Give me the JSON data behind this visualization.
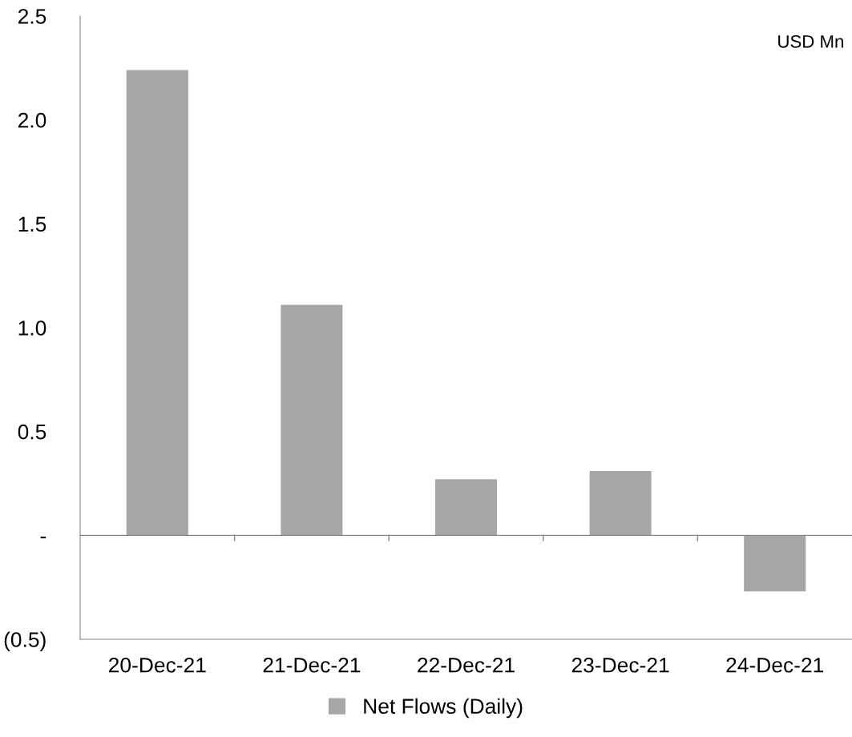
{
  "chart_data": {
    "type": "bar",
    "categories": [
      "20-Dec-21",
      "21-Dec-21",
      "22-Dec-21",
      "23-Dec-21",
      "24-Dec-21"
    ],
    "series": [
      {
        "name": "Net Flows (Daily)",
        "color": "#a6a6a6",
        "values": [
          2.24,
          1.11,
          0.27,
          0.31,
          -0.27
        ]
      }
    ],
    "ylim": [
      -0.5,
      2.5
    ],
    "yticks": [
      {
        "value": -0.5,
        "label": "(0.5)"
      },
      {
        "value": 0,
        "label": "-"
      },
      {
        "value": 0.5,
        "label": "0.5"
      },
      {
        "value": 1.0,
        "label": "1.0"
      },
      {
        "value": 1.5,
        "label": "1.5"
      },
      {
        "value": 2.0,
        "label": "2.0"
      },
      {
        "value": 2.5,
        "label": "2.5"
      }
    ],
    "annotations": [
      "USD Mn"
    ],
    "legend": "bottom"
  }
}
